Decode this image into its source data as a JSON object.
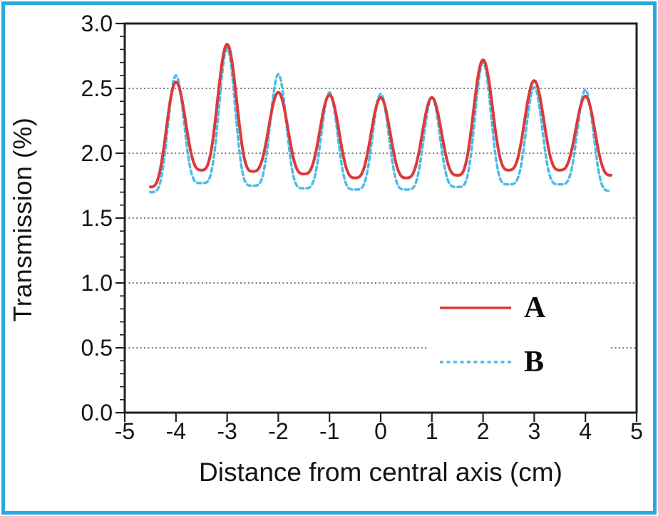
{
  "figure": {
    "border_color": "#2aa9e1",
    "background": "#ffffff"
  },
  "chart_data": {
    "type": "line",
    "title": "",
    "xlabel": "Distance from central axis (cm)",
    "ylabel": "Transmission (%)",
    "xlim": [
      -5,
      5
    ],
    "ylim": [
      0.0,
      3.0
    ],
    "x_ticks": {
      "values": [
        -5,
        -4,
        -3,
        -2,
        -1,
        0,
        1,
        2,
        3,
        4,
        5
      ],
      "labels": [
        "-5",
        "-4",
        "-3",
        "-2",
        "-1",
        "0",
        "1",
        "2",
        "3",
        "4",
        "5"
      ]
    },
    "y_ticks": {
      "values": [
        0,
        0.5,
        1,
        1.5,
        2,
        2.5,
        3
      ],
      "labels": [
        "0.0",
        "0.5",
        "1.0",
        "1.5",
        "2.0",
        "2.5",
        "3.0"
      ],
      "minor_step": 0.1
    },
    "gridlines": {
      "style": "dotted",
      "color": "#4d4d4d",
      "y_lines": [
        {
          "y": 2.5,
          "segments": [
            [
              -5,
              5
            ]
          ]
        },
        {
          "y": 2.0,
          "segments": [
            [
              -5,
              5
            ]
          ]
        },
        {
          "y": 1.5,
          "segments": [
            [
              -5,
              5
            ]
          ]
        },
        {
          "y": 1.0,
          "segments": [
            [
              -5,
              5
            ]
          ]
        },
        {
          "y": 0.5,
          "segments": [
            [
              -5,
              0.9
            ],
            [
              4.5,
              5
            ]
          ]
        }
      ]
    },
    "legend": {
      "position": "lower-right",
      "entries": [
        {
          "label": "A",
          "color": "#dc3a3a",
          "line_style": "solid"
        },
        {
          "label": "B",
          "color": "#4cbce8",
          "line_style": "dashed"
        }
      ]
    },
    "series": [
      {
        "name": "A",
        "color": "#dc3a3a",
        "line_style": "solid",
        "peak_sharpness": 1.6,
        "valleys": {
          "x": [
            -4.5,
            -3.5,
            -2.5,
            -1.5,
            -0.5,
            0.5,
            1.5,
            2.5,
            3.5,
            4.5
          ],
          "y": [
            1.74,
            1.87,
            1.86,
            1.84,
            1.81,
            1.81,
            1.83,
            1.87,
            1.87,
            1.83
          ]
        },
        "peaks": {
          "x": [
            -4,
            -3,
            -2,
            -1,
            0,
            1,
            2,
            3,
            4
          ],
          "y": [
            2.55,
            2.84,
            2.47,
            2.45,
            2.43,
            2.43,
            2.72,
            2.56,
            2.44
          ]
        }
      },
      {
        "name": "B",
        "color": "#4cbce8",
        "line_style": "dashed",
        "peak_sharpness": 2.2,
        "valleys": {
          "x": [
            -4.5,
            -3.5,
            -2.5,
            -1.5,
            -0.5,
            0.5,
            1.5,
            2.5,
            3.5,
            4.5
          ],
          "y": [
            1.7,
            1.77,
            1.75,
            1.73,
            1.72,
            1.72,
            1.74,
            1.76,
            1.76,
            1.71
          ]
        },
        "peaks": {
          "x": [
            -4,
            -3,
            -2,
            -1,
            0,
            1,
            2,
            3,
            4
          ],
          "y": [
            2.6,
            2.81,
            2.61,
            2.47,
            2.46,
            2.43,
            2.7,
            2.51,
            2.49
          ]
        }
      }
    ]
  }
}
